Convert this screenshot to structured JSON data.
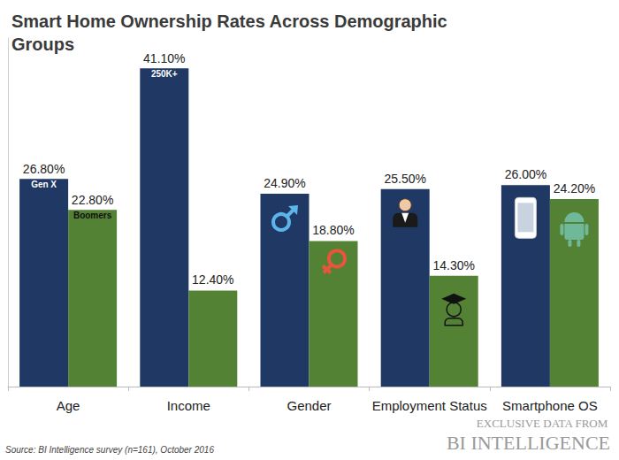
{
  "chart_data": {
    "type": "bar",
    "title": "Smart Home Ownership Rates Across Demographic Groups",
    "categories": [
      "Age",
      "Income",
      "Gender",
      "Employment Status",
      "Smartphone OS"
    ],
    "series": [
      {
        "color": "#1f3864",
        "values": [
          26.8,
          41.1,
          24.9,
          25.5,
          26.0
        ],
        "value_labels": [
          "26.80%",
          "41.10%",
          "24.90%",
          "25.50%",
          "26.00%"
        ],
        "inner_labels": [
          "Gen X",
          "250K+",
          null,
          null,
          null
        ]
      },
      {
        "color": "#548235",
        "values": [
          22.8,
          12.4,
          18.8,
          14.3,
          24.2
        ],
        "value_labels": [
          "22.80%",
          "12.40%",
          "18.80%",
          "14.30%",
          "24.20%"
        ],
        "inner_labels": [
          "Boomers",
          null,
          null,
          null,
          null
        ]
      }
    ],
    "ylim": [
      0,
      45
    ],
    "data_labels": true,
    "tick_labels": "x",
    "grid": false,
    "source": "Source: BI Intelligence survey (n=161), October 2016",
    "credit": [
      "EXCLUSIVE DATA FROM",
      "BI INTELLIGENCE"
    ]
  }
}
